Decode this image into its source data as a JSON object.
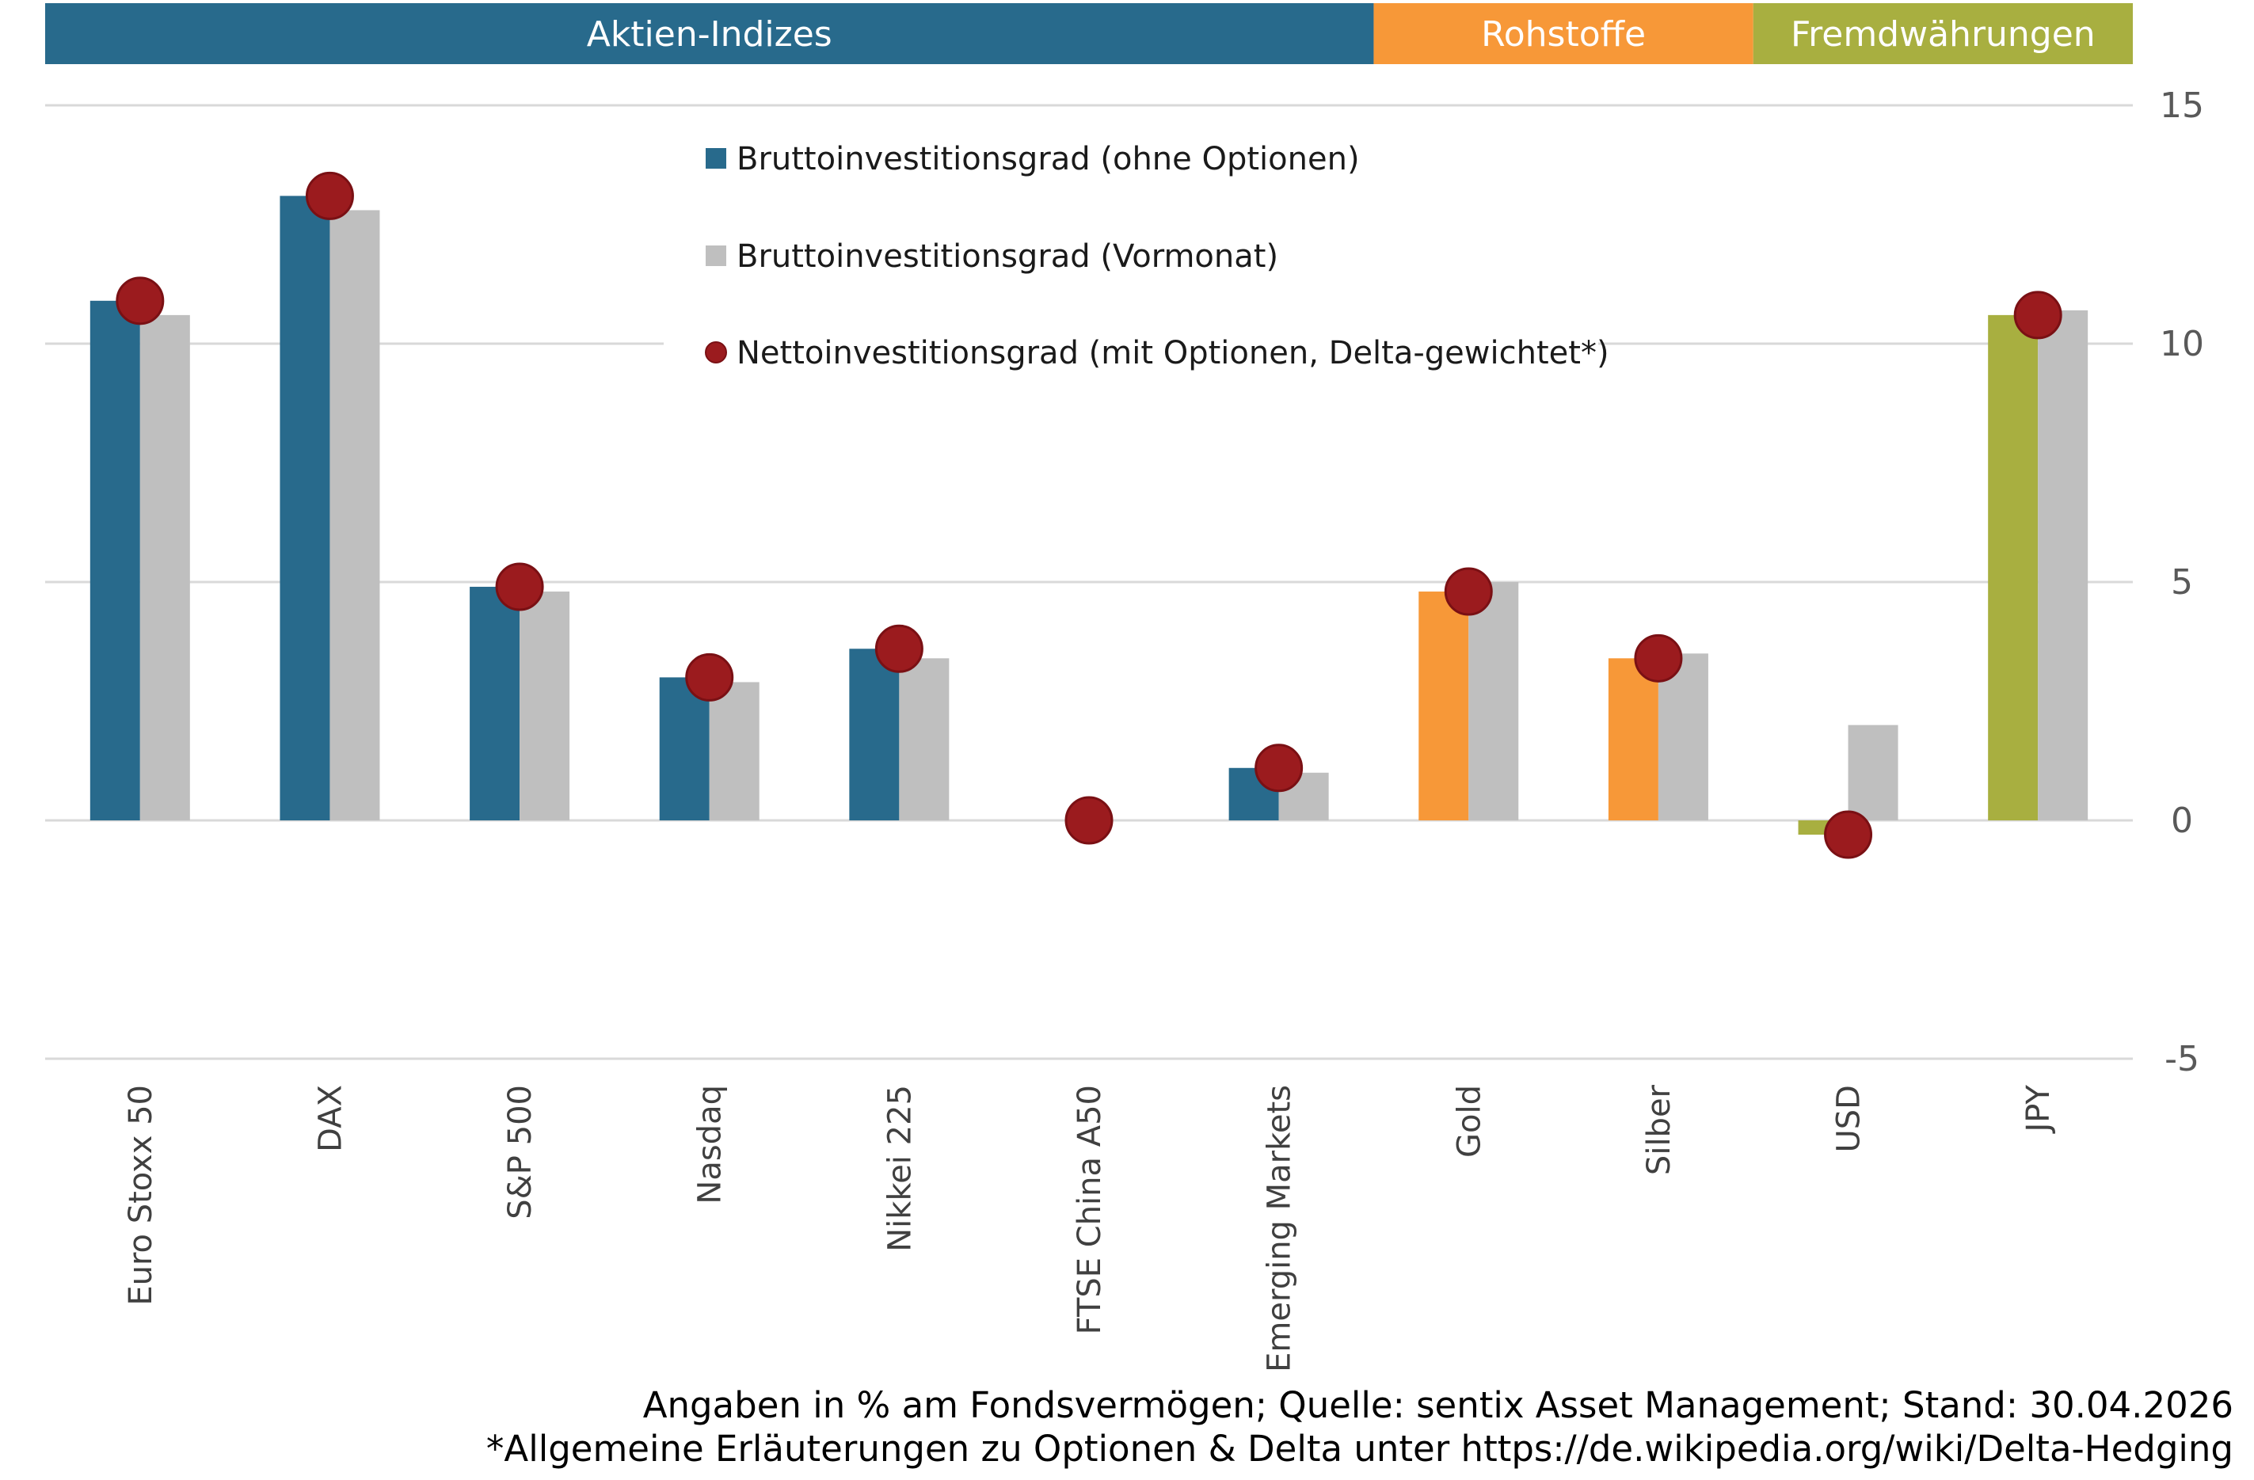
{
  "groups": [
    {
      "label": "Aktien-Indizes",
      "from": 0,
      "to": 6,
      "color": "#286A8C"
    },
    {
      "label": "Rohstoffe",
      "from": 7,
      "to": 8,
      "color": "#F79838"
    },
    {
      "label": "Fremdwährungen",
      "from": 9,
      "to": 10,
      "color": "#A8AF40"
    }
  ],
  "legend": [
    {
      "label": "Bruttoinvestitionsgrad (ohne Optionen)",
      "color": "#286A8C",
      "shape": "square"
    },
    {
      "label": "Bruttoinvestitionsgrad (Vormonat)",
      "color": "#BFBFBF",
      "shape": "square"
    },
    {
      "label": "Nettoinvestitionsgrad (mit Optionen, Delta-gewichtet*)",
      "color": "#9B1B1E",
      "shape": "circle"
    }
  ],
  "footnotes": [
    "Angaben in % am Fondsvermögen; Quelle: sentix Asset Management; Stand: 30.04.2026",
    "*Allgemeine Erläuterungen zu Optionen & Delta unter https://de.wikipedia.org/wiki/Delta-Hedging"
  ],
  "chart_data": {
    "type": "bar",
    "categories": [
      "Euro Stoxx 50",
      "DAX",
      "S&P 500",
      "Nasdaq",
      "Nikkei 225",
      "FTSE China A50",
      "Emerging Markets",
      "Gold",
      "Silber",
      "USD",
      "JPY"
    ],
    "series": [
      {
        "name": "Bruttoinvestitionsgrad (ohne Optionen)",
        "kind": "bar",
        "values": [
          10.9,
          13.1,
          4.9,
          3.0,
          3.6,
          0.0,
          1.1,
          4.8,
          3.4,
          -0.3,
          10.6
        ],
        "colors": [
          "#286A8C",
          "#286A8C",
          "#286A8C",
          "#286A8C",
          "#286A8C",
          "#286A8C",
          "#286A8C",
          "#F79838",
          "#F79838",
          "#A8AF40",
          "#A8AF40"
        ]
      },
      {
        "name": "Bruttoinvestitionsgrad (Vormonat)",
        "kind": "bar",
        "values": [
          10.6,
          12.8,
          4.8,
          2.9,
          3.4,
          0.0,
          1.0,
          5.0,
          3.5,
          2.0,
          10.7
        ],
        "color": "#BFBFBF"
      },
      {
        "name": "Nettoinvestitionsgrad (mit Optionen, Delta-gewichtet*)",
        "kind": "point",
        "values": [
          10.9,
          13.1,
          4.9,
          3.0,
          3.6,
          0.0,
          1.1,
          4.8,
          3.4,
          -0.3,
          10.6
        ],
        "color": "#9B1B1E"
      }
    ],
    "y_ticks": [
      15,
      10,
      5,
      0,
      -5
    ],
    "ylim": [
      -5,
      15
    ],
    "y_axis_side": "right",
    "grid": true,
    "legend_position": "top-center",
    "xlabel": "",
    "ylabel": ""
  }
}
